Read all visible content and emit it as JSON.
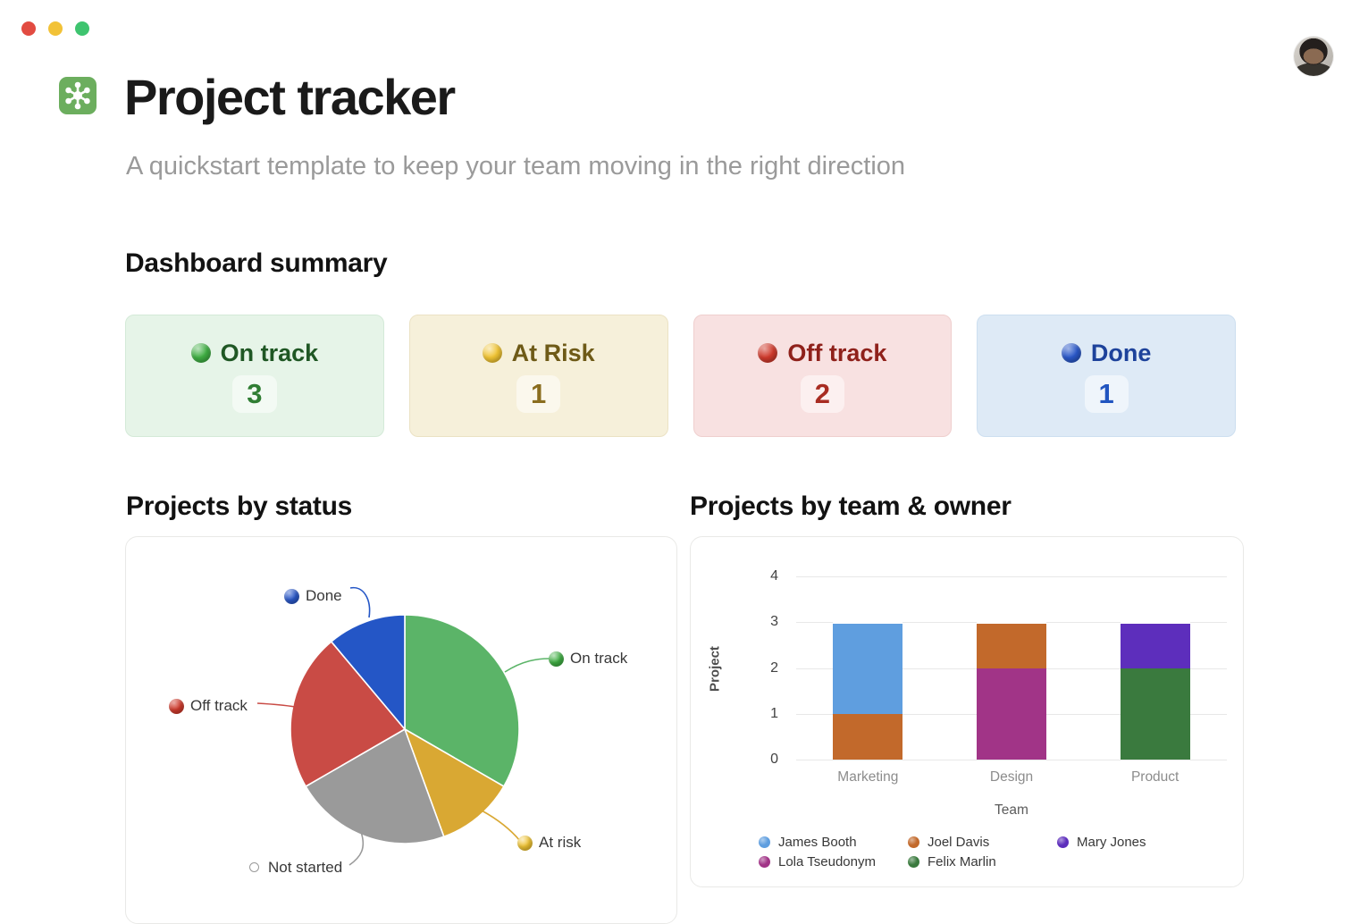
{
  "window": {
    "controls": [
      {
        "name": "close",
        "color": "#e24b41"
      },
      {
        "name": "minimize",
        "color": "#f2c237"
      },
      {
        "name": "zoom",
        "color": "#3ec46f"
      }
    ],
    "avatar_icon": "user-avatar-photo"
  },
  "header": {
    "app_icon": "project-tracker-icon",
    "title": "Project tracker",
    "subtitle": "A quickstart template to keep your team moving in the right direction"
  },
  "summary": {
    "heading": "Dashboard summary",
    "cards": [
      {
        "id": "on-track",
        "label": "On track",
        "count": "3",
        "accent": "#3fae43",
        "bg": "#e6f4e8"
      },
      {
        "id": "at-risk",
        "label": "At Risk",
        "count": "1",
        "accent": "#f0c433",
        "bg": "#f6f0da"
      },
      {
        "id": "off-track",
        "label": "Off track",
        "count": "2",
        "accent": "#cf3a2c",
        "bg": "#f8e1e1"
      },
      {
        "id": "done",
        "label": "Done",
        "count": "1",
        "accent": "#2a58c8",
        "bg": "#deeaf6"
      }
    ]
  },
  "sections": {
    "pie_title": "Projects by status",
    "bar_title": "Projects by team & owner"
  },
  "chart_data": [
    {
      "type": "pie",
      "title": "Projects by status",
      "start_angle_deg": 0,
      "clockwise": true,
      "legend_style": "callout-labels",
      "slices": [
        {
          "label": "On track",
          "value": 3,
          "color": "#5bb468"
        },
        {
          "label": "At risk",
          "value": 1,
          "color": "#d9a833"
        },
        {
          "label": "Not started",
          "value": 2,
          "color": "#9a9a9a"
        },
        {
          "label": "Off track",
          "value": 2,
          "color": "#c94b45"
        },
        {
          "label": "Done",
          "value": 1,
          "color": "#2456c6"
        }
      ]
    },
    {
      "type": "bar",
      "stacked": true,
      "title": "Projects by team & owner",
      "xlabel": "Team",
      "ylabel": "Project",
      "ylim": [
        0,
        4
      ],
      "yticks": [
        0,
        1,
        2,
        3,
        4
      ],
      "grid": true,
      "categories": [
        "Marketing",
        "Design",
        "Product"
      ],
      "owners": [
        {
          "name": "James Booth",
          "color": "#5f9edf"
        },
        {
          "name": "Joel Davis",
          "color": "#c2692b"
        },
        {
          "name": "Mary Jones",
          "color": "#5d2ebc"
        },
        {
          "name": "Lola Tseudonym",
          "color": "#a13487"
        },
        {
          "name": "Felix Marlin",
          "color": "#3a7a3e"
        }
      ],
      "stacks": [
        {
          "category": "Marketing",
          "segments": [
            {
              "owner": "Joel Davis",
              "value": 1
            },
            {
              "owner": "James Booth",
              "value": 2
            }
          ]
        },
        {
          "category": "Design",
          "segments": [
            {
              "owner": "Lola Tseudonym",
              "value": 2
            },
            {
              "owner": "Joel Davis",
              "value": 1
            }
          ]
        },
        {
          "category": "Product",
          "segments": [
            {
              "owner": "Felix Marlin",
              "value": 2
            },
            {
              "owner": "Mary Jones",
              "value": 1
            }
          ]
        }
      ],
      "legend_rows": [
        [
          "James Booth",
          "Joel Davis",
          "Mary Jones"
        ],
        [
          "Lola Tseudonym",
          "Felix Marlin"
        ]
      ]
    }
  ]
}
